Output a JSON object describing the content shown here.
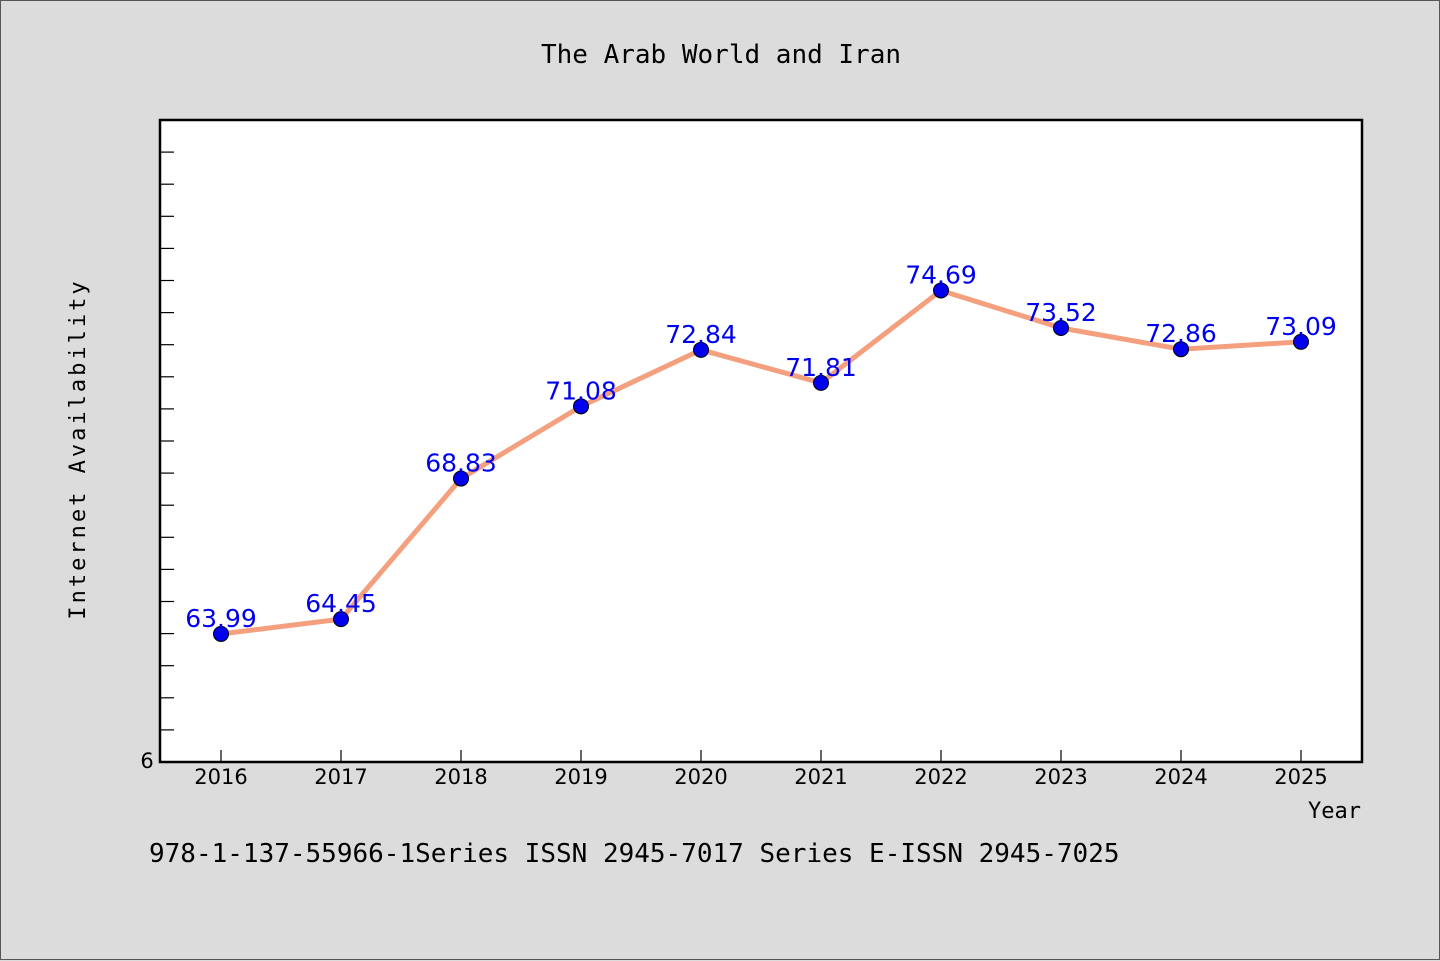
{
  "chart_data": {
    "type": "line",
    "title": "The Arab World and Iran",
    "xlabel": "Year",
    "ylabel": "Internet Availability",
    "categories": [
      "2016",
      "2017",
      "2018",
      "2019",
      "2020",
      "2021",
      "2022",
      "2023",
      "2024",
      "2025"
    ],
    "series": [
      {
        "values": [
          63.99,
          64.45,
          68.83,
          71.08,
          72.84,
          71.81,
          74.69,
          73.52,
          72.86,
          73.09
        ],
        "data_labels": [
          "63.99",
          "64.45",
          "68.83",
          "71.08",
          "72.84",
          "71.81",
          "74.69",
          "73.52",
          "72.86",
          "73.09"
        ]
      }
    ],
    "y_tick_label": "6",
    "ylim": [
      60,
      80
    ],
    "grid": false,
    "legend": "none",
    "colors": {
      "line": "#f4a07e",
      "marker": "#0000ee",
      "label": "#0000ee",
      "plot_bg": "#ffffff",
      "page_bg": "#dcdcdc"
    }
  },
  "footer": "978-1-137-55966-1Series ISSN 2945-7017 Series E-ISSN 2945-7025"
}
